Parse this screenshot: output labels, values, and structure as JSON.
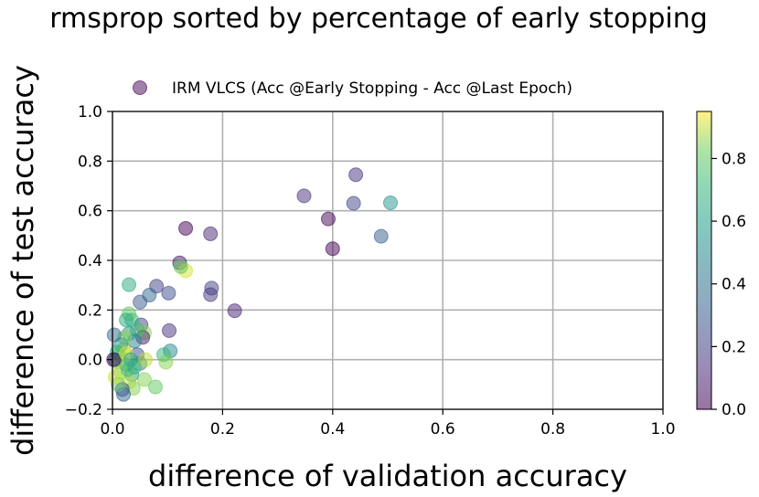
{
  "chart_data": {
    "type": "scatter",
    "title": "rmsprop sorted by percentage of early stopping",
    "xlabel": "difference of validation accuracy",
    "ylabel": "difference of test accuracy",
    "xlim": [
      0.0,
      1.0
    ],
    "ylim": [
      -0.2,
      1.0
    ],
    "xticks": [
      "0.0",
      "0.2",
      "0.4",
      "0.6",
      "0.8",
      "1.0"
    ],
    "yticks": [
      "−0.2",
      "0.0",
      "0.2",
      "0.4",
      "0.6",
      "0.8",
      "1.0"
    ],
    "grid": true,
    "legend": {
      "label": "IRM VLCS (Acc @Early Stopping - Acc @Last Epoch)",
      "placement": "top-center"
    },
    "colorbar": {
      "colormap": "viridis",
      "range": [
        0.0,
        0.95
      ],
      "ticks": [
        "0.0",
        "0.2",
        "0.4",
        "0.6",
        "0.8"
      ]
    },
    "series": [
      {
        "name": "IRM VLCS (Acc @Early Stopping - Acc @Last Epoch)",
        "points": [
          {
            "x": 0.442,
            "y": 0.745,
            "c": 0.15
          },
          {
            "x": 0.348,
            "y": 0.66,
            "c": 0.15
          },
          {
            "x": 0.438,
            "y": 0.63,
            "c": 0.22
          },
          {
            "x": 0.505,
            "y": 0.632,
            "c": 0.55
          },
          {
            "x": 0.392,
            "y": 0.567,
            "c": 0.0
          },
          {
            "x": 0.4,
            "y": 0.447,
            "c": 0.0
          },
          {
            "x": 0.488,
            "y": 0.497,
            "c": 0.3
          },
          {
            "x": 0.133,
            "y": 0.529,
            "c": 0.0
          },
          {
            "x": 0.178,
            "y": 0.507,
            "c": 0.12
          },
          {
            "x": 0.122,
            "y": 0.39,
            "c": 0.05
          },
          {
            "x": 0.133,
            "y": 0.358,
            "c": 0.92
          },
          {
            "x": 0.124,
            "y": 0.375,
            "c": 0.8
          },
          {
            "x": 0.18,
            "y": 0.288,
            "c": 0.2
          },
          {
            "x": 0.178,
            "y": 0.262,
            "c": 0.18
          },
          {
            "x": 0.222,
            "y": 0.197,
            "c": 0.1
          },
          {
            "x": 0.08,
            "y": 0.296,
            "c": 0.2
          },
          {
            "x": 0.102,
            "y": 0.268,
            "c": 0.25
          },
          {
            "x": 0.067,
            "y": 0.26,
            "c": 0.35
          },
          {
            "x": 0.05,
            "y": 0.232,
            "c": 0.3
          },
          {
            "x": 0.03,
            "y": 0.302,
            "c": 0.65
          },
          {
            "x": 0.103,
            "y": 0.117,
            "c": 0.15
          },
          {
            "x": 0.105,
            "y": 0.035,
            "c": 0.5
          },
          {
            "x": 0.093,
            "y": 0.02,
            "c": 0.7
          },
          {
            "x": 0.097,
            "y": -0.01,
            "c": 0.85
          },
          {
            "x": 0.078,
            "y": -0.11,
            "c": 0.8
          },
          {
            "x": 0.058,
            "y": -0.08,
            "c": 0.85
          },
          {
            "x": 0.052,
            "y": 0.14,
            "c": 0.2
          },
          {
            "x": 0.058,
            "y": 0.108,
            "c": 0.85
          },
          {
            "x": 0.055,
            "y": 0.09,
            "c": 0.1
          },
          {
            "x": 0.045,
            "y": 0.12,
            "c": 0.75
          },
          {
            "x": 0.04,
            "y": 0.075,
            "c": 0.45
          },
          {
            "x": 0.035,
            "y": 0.16,
            "c": 0.7
          },
          {
            "x": 0.03,
            "y": 0.185,
            "c": 0.8
          },
          {
            "x": 0.025,
            "y": 0.16,
            "c": 0.65
          },
          {
            "x": 0.03,
            "y": 0.105,
            "c": 0.55
          },
          {
            "x": 0.022,
            "y": 0.09,
            "c": 0.85
          },
          {
            "x": 0.045,
            "y": 0.02,
            "c": 0.25
          },
          {
            "x": 0.05,
            "y": -0.015,
            "c": 0.45
          },
          {
            "x": 0.06,
            "y": 0.0,
            "c": 0.9
          },
          {
            "x": 0.04,
            "y": -0.03,
            "c": 0.75
          },
          {
            "x": 0.035,
            "y": -0.06,
            "c": 0.6
          },
          {
            "x": 0.03,
            "y": -0.09,
            "c": 0.9
          },
          {
            "x": 0.038,
            "y": -0.115,
            "c": 0.85
          },
          {
            "x": 0.025,
            "y": -0.02,
            "c": 0.5
          },
          {
            "x": 0.02,
            "y": 0.04,
            "c": 0.88
          },
          {
            "x": 0.015,
            "y": 0.06,
            "c": 0.55
          },
          {
            "x": 0.012,
            "y": 0.02,
            "c": 0.8
          },
          {
            "x": 0.01,
            "y": -0.01,
            "c": 0.9
          },
          {
            "x": 0.008,
            "y": 0.03,
            "c": 0.7
          },
          {
            "x": 0.005,
            "y": 0.0,
            "c": 0.6
          },
          {
            "x": 0.003,
            "y": 0.1,
            "c": 0.35
          },
          {
            "x": 0.015,
            "y": -0.05,
            "c": 0.85
          },
          {
            "x": 0.018,
            "y": -0.12,
            "c": 0.25
          },
          {
            "x": 0.02,
            "y": -0.14,
            "c": 0.35
          },
          {
            "x": 0.01,
            "y": -0.1,
            "c": 0.8
          },
          {
            "x": 0.005,
            "y": -0.07,
            "c": 0.9
          },
          {
            "x": 0.002,
            "y": 0.0,
            "c": 0.0
          },
          {
            "x": 0.025,
            "y": 0.025,
            "c": 0.92
          },
          {
            "x": 0.028,
            "y": -0.04,
            "c": 0.75
          },
          {
            "x": 0.033,
            "y": 0.0,
            "c": 0.65
          }
        ]
      }
    ]
  }
}
